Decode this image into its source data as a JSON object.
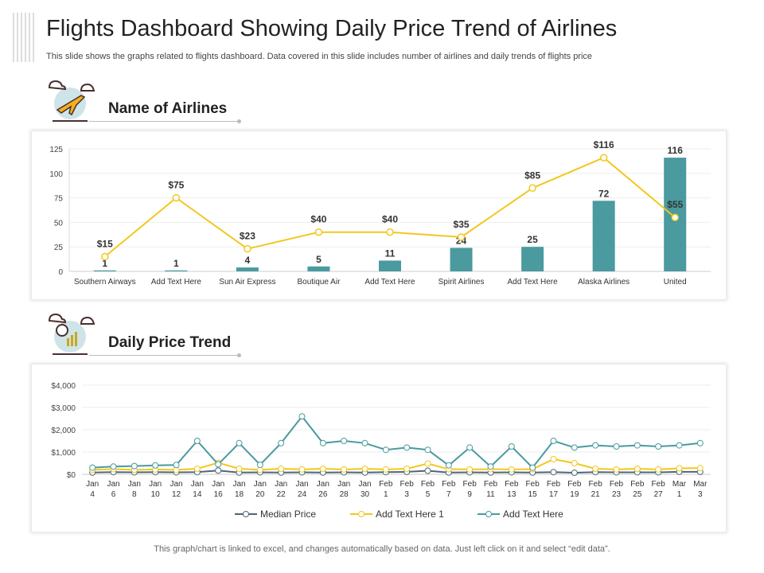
{
  "title": "Flights Dashboard Showing Daily Price Trend of Airlines",
  "subtitle": "This slide shows the graphs related to flights dashboard. Data covered in this slide includes number of airlines and daily trends of flights price",
  "sections": {
    "airlines": "Name of Airlines",
    "trend": "Daily Price Trend"
  },
  "icons": {
    "airlines": "airplane-clouds-icon",
    "trend": "magnifier-chart-icon"
  },
  "footer": "This graph/chart is linked to excel, and changes automatically based on data. Just left click on it and select “edit data”.",
  "colors": {
    "bar": "#4a9a9f",
    "price_line": "#f2c81e",
    "median": "#4f6675",
    "teal": "#4a9a9f"
  },
  "chart_data": [
    {
      "type": "bar",
      "categories": [
        "Southern Airways",
        "Add Text Here",
        "Sun Air Express",
        "Boutique Air",
        "Add Text Here",
        "Spirit Airlines",
        "Add Text Here",
        "Alaska Airlines",
        "United"
      ],
      "series": [
        {
          "type": "bar",
          "values": [
            1,
            1,
            4,
            5,
            11,
            24,
            25,
            72,
            116
          ],
          "labels": [
            "1",
            "1",
            "4",
            "5",
            "11",
            "24",
            "25",
            "72",
            "116"
          ]
        },
        {
          "type": "line",
          "values": [
            15,
            75,
            23,
            40,
            40,
            35,
            85,
            116,
            55
          ],
          "labels": [
            "$15",
            "$75",
            "$23",
            "$40",
            "$40",
            "$35",
            "$85",
            "$116",
            "$55"
          ]
        }
      ],
      "ylim": [
        0,
        125
      ],
      "yticks": [
        "0",
        "25",
        "50",
        "75",
        "100",
        "125"
      ],
      "grid": true
    },
    {
      "type": "line",
      "categories": [
        "Jan 4",
        "Jan 6",
        "Jan 8",
        "Jan 10",
        "Jan 12",
        "Jan 14",
        "Jan 16",
        "Jan 18",
        "Jan 20",
        "Jan 22",
        "Jan 24",
        "Jan 26",
        "Jan 28",
        "Jan 30",
        "Feb 1",
        "Feb 3",
        "Feb 5",
        "Feb 7",
        "Feb 9",
        "Feb 11",
        "Feb 13",
        "Feb 15",
        "Feb 17",
        "Feb 19",
        "Feb 21",
        "Feb 23",
        "Feb 25",
        "Feb 27",
        "Mar 1",
        "Mar 3"
      ],
      "ylim": [
        0,
        4000
      ],
      "yticks": [
        "$0",
        "$1,000",
        "$2,000",
        "$3,000",
        "$4,000"
      ],
      "grid": true,
      "legend": "bottom",
      "series": [
        {
          "name": "Median Price",
          "values": [
            80,
            100,
            90,
            100,
            90,
            100,
            170,
            80,
            90,
            80,
            90,
            80,
            90,
            80,
            100,
            110,
            160,
            80,
            90,
            80,
            90,
            80,
            100,
            70,
            100,
            90,
            90,
            90,
            110,
            110
          ]
        },
        {
          "name": "Add Text Here 1",
          "values": [
            200,
            230,
            200,
            220,
            200,
            250,
            520,
            250,
            200,
            250,
            220,
            250,
            220,
            250,
            220,
            250,
            480,
            230,
            220,
            230,
            220,
            230,
            680,
            500,
            250,
            220,
            250,
            220,
            270,
            280
          ]
        },
        {
          "name": "Add Text Here",
          "values": [
            300,
            350,
            370,
            400,
            420,
            1500,
            450,
            1400,
            430,
            1400,
            2600,
            1400,
            1500,
            1400,
            1100,
            1200,
            1100,
            400,
            1200,
            350,
            1250,
            300,
            1500,
            1200,
            1300,
            1250,
            1300,
            1250,
            1300,
            1400
          ]
        }
      ]
    }
  ]
}
